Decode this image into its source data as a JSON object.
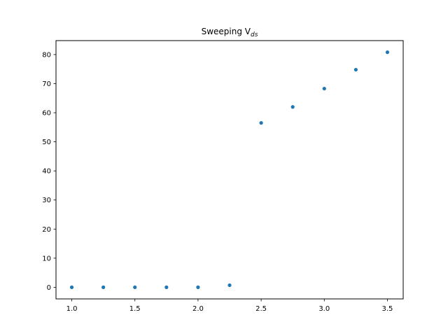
{
  "chart_data": {
    "type": "scatter",
    "title": "Sweeping V",
    "title_subscript": "ds",
    "xlabel": "",
    "ylabel": "",
    "xlim": [
      0.875,
      3.625
    ],
    "ylim": [
      -4.0,
      84.8
    ],
    "xticks": [
      1.0,
      1.5,
      2.0,
      2.5,
      3.0,
      3.5
    ],
    "xtick_labels": [
      "1.0",
      "1.5",
      "2.0",
      "2.5",
      "3.0",
      "3.5"
    ],
    "yticks": [
      0,
      10,
      20,
      30,
      40,
      50,
      60,
      70,
      80
    ],
    "ytick_labels": [
      "0",
      "10",
      "20",
      "30",
      "40",
      "50",
      "60",
      "70",
      "80"
    ],
    "grid": false,
    "marker_color": "#1f77b4",
    "series": [
      {
        "x": [
          1.0,
          1.25,
          1.5,
          1.75,
          2.0,
          2.25,
          2.5,
          2.75,
          3.0,
          3.25,
          3.5
        ],
        "y": [
          0.0,
          0.0,
          0.0,
          0.0,
          0.0,
          0.7,
          56.5,
          62.0,
          68.3,
          74.8,
          80.8
        ]
      }
    ]
  }
}
